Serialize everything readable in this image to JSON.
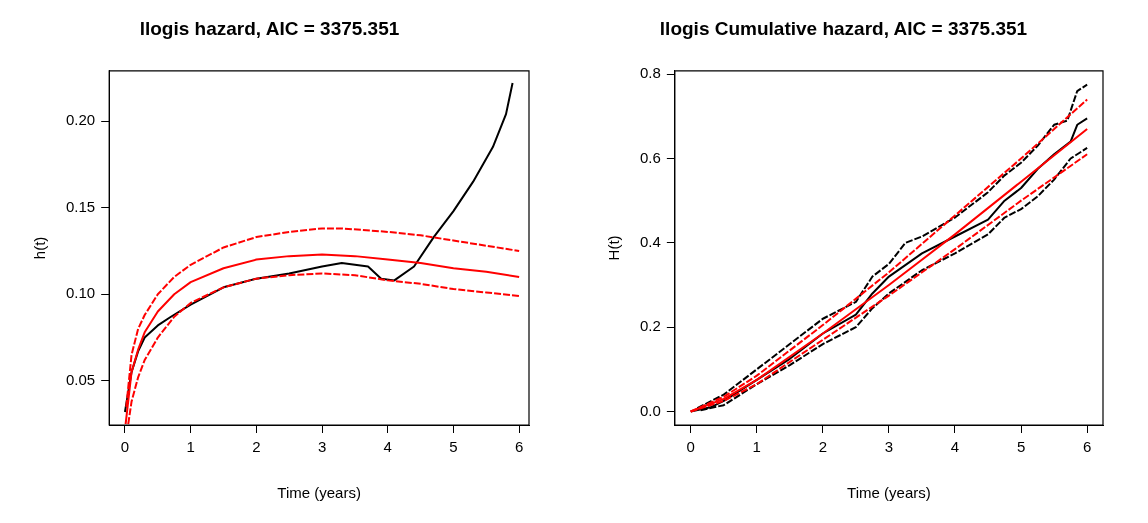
{
  "chart_data": [
    {
      "type": "line",
      "title": "llogis hazard, AIC = 3375.351",
      "xlabel": "Time (years)",
      "ylabel": "h(t)",
      "xlim": [
        -0.24,
        6.15
      ],
      "ylim": [
        0.0245,
        0.229
      ],
      "xticks": [
        0,
        1,
        2,
        3,
        4,
        5,
        6
      ],
      "yticks": [
        {
          "value": 0.05,
          "label": "0.05"
        },
        {
          "value": 0.1,
          "label": "0.10"
        },
        {
          "value": 0.15,
          "label": "0.15"
        },
        {
          "value": 0.2,
          "label": "0.20"
        }
      ],
      "series": [
        {
          "color": "#000000",
          "line_style": "solid",
          "x": [
            0,
            0.1,
            0.2,
            0.3,
            0.5,
            0.7,
            1,
            1.5,
            2,
            2.5,
            3,
            3.3,
            3.7,
            3.9,
            4.1,
            4.4,
            4.7,
            5,
            5.3,
            5.6,
            5.8,
            5.9
          ],
          "values": [
            0.032,
            0.055,
            0.067,
            0.075,
            0.082,
            0.087,
            0.094,
            0.104,
            0.109,
            0.112,
            0.116,
            0.118,
            0.116,
            0.109,
            0.108,
            0.116,
            0.133,
            0.148,
            0.165,
            0.185,
            0.204,
            0.222
          ]
        },
        {
          "color": "#ff0000",
          "line_style": "solid",
          "x": [
            0.01,
            0.1,
            0.2,
            0.3,
            0.5,
            0.75,
            1,
            1.5,
            2,
            2.5,
            3,
            3.5,
            4,
            4.5,
            5,
            5.5,
            6
          ],
          "values": [
            0.025,
            0.055,
            0.068,
            0.078,
            0.09,
            0.1,
            0.107,
            0.115,
            0.12,
            0.122,
            0.123,
            0.122,
            0.12,
            0.118,
            0.115,
            0.113,
            0.11
          ]
        },
        {
          "color": "#ff0000",
          "line_style": "dashed",
          "x": [
            0.02,
            0.1,
            0.2,
            0.3,
            0.5,
            0.75,
            1,
            1.5,
            2,
            2.5,
            3,
            3.3,
            4,
            4.5,
            5,
            5.5,
            6
          ],
          "values": [
            0.035,
            0.065,
            0.08,
            0.088,
            0.1,
            0.11,
            0.117,
            0.127,
            0.133,
            0.136,
            0.138,
            0.138,
            0.136,
            0.134,
            0.131,
            0.128,
            0.125
          ]
        },
        {
          "color": "#ff0000",
          "line_style": "dashed",
          "x": [
            0.05,
            0.1,
            0.2,
            0.3,
            0.5,
            0.75,
            1,
            1.5,
            2,
            2.5,
            3,
            3.5,
            4,
            4.5,
            5,
            5.5,
            6
          ],
          "values": [
            0.025,
            0.038,
            0.052,
            0.062,
            0.075,
            0.087,
            0.095,
            0.104,
            0.109,
            0.111,
            0.112,
            0.111,
            0.108,
            0.106,
            0.103,
            0.101,
            0.099
          ]
        }
      ]
    },
    {
      "type": "line",
      "title": "llogis Cumulative hazard, AIC = 3375.351",
      "xlabel": "Time (years)",
      "ylabel": "H(t)",
      "xlim": [
        -0.24,
        6.24
      ],
      "ylim": [
        -0.032,
        0.808
      ],
      "xticks": [
        0,
        1,
        2,
        3,
        4,
        5,
        6
      ],
      "yticks": [
        {
          "value": 0,
          "label": "0.0"
        },
        {
          "value": 0.2,
          "label": "0.2"
        },
        {
          "value": 0.4,
          "label": "0.4"
        },
        {
          "value": 0.6,
          "label": "0.6"
        },
        {
          "value": 0.8,
          "label": "0.8"
        }
      ],
      "series": [
        {
          "color": "#000000",
          "line_style": "solid",
          "x": [
            0,
            0.3,
            0.5,
            1,
            1.5,
            2,
            2.5,
            2.75,
            3,
            3.5,
            4,
            4.5,
            4.75,
            5,
            5.25,
            5.5,
            5.75,
            5.85,
            6
          ],
          "values": [
            0,
            0.01,
            0.025,
            0.075,
            0.125,
            0.185,
            0.23,
            0.28,
            0.32,
            0.375,
            0.415,
            0.455,
            0.5,
            0.53,
            0.575,
            0.61,
            0.64,
            0.68,
            0.695
          ]
        },
        {
          "color": "#000000",
          "line_style": "dashed",
          "x": [
            0.1,
            0.5,
            1,
            1.5,
            2,
            2.5,
            2.75,
            3,
            3.25,
            3.5,
            4,
            4.5,
            4.75,
            5,
            5.25,
            5.5,
            5.7,
            5.85,
            6
          ],
          "values": [
            0.008,
            0.04,
            0.1,
            0.16,
            0.22,
            0.26,
            0.32,
            0.35,
            0.4,
            0.415,
            0.46,
            0.52,
            0.56,
            0.59,
            0.63,
            0.68,
            0.69,
            0.76,
            0.775
          ]
        },
        {
          "color": "#000000",
          "line_style": "dashed",
          "x": [
            0.15,
            0.5,
            1,
            1.5,
            2,
            2.5,
            2.75,
            3,
            3.5,
            4,
            4.5,
            4.75,
            5,
            5.25,
            5.5,
            5.75,
            6
          ],
          "values": [
            0.003,
            0.015,
            0.065,
            0.11,
            0.16,
            0.2,
            0.245,
            0.28,
            0.335,
            0.375,
            0.42,
            0.46,
            0.48,
            0.51,
            0.55,
            0.6,
            0.625
          ]
        },
        {
          "color": "#ff0000",
          "line_style": "solid",
          "x": [
            0,
            0.5,
            1,
            2,
            3,
            4,
            5,
            6
          ],
          "values": [
            0,
            0.03,
            0.075,
            0.185,
            0.3,
            0.42,
            0.545,
            0.67
          ]
        },
        {
          "color": "#ff0000",
          "line_style": "dashed",
          "x": [
            0,
            0.5,
            1,
            2,
            3,
            4,
            5,
            6
          ],
          "values": [
            0,
            0.035,
            0.085,
            0.205,
            0.33,
            0.465,
            0.6,
            0.74
          ]
        },
        {
          "color": "#ff0000",
          "line_style": "dashed",
          "x": [
            0,
            0.5,
            1,
            2,
            3,
            4,
            5,
            6
          ],
          "values": [
            0,
            0.025,
            0.065,
            0.17,
            0.275,
            0.385,
            0.5,
            0.61
          ]
        }
      ]
    }
  ]
}
